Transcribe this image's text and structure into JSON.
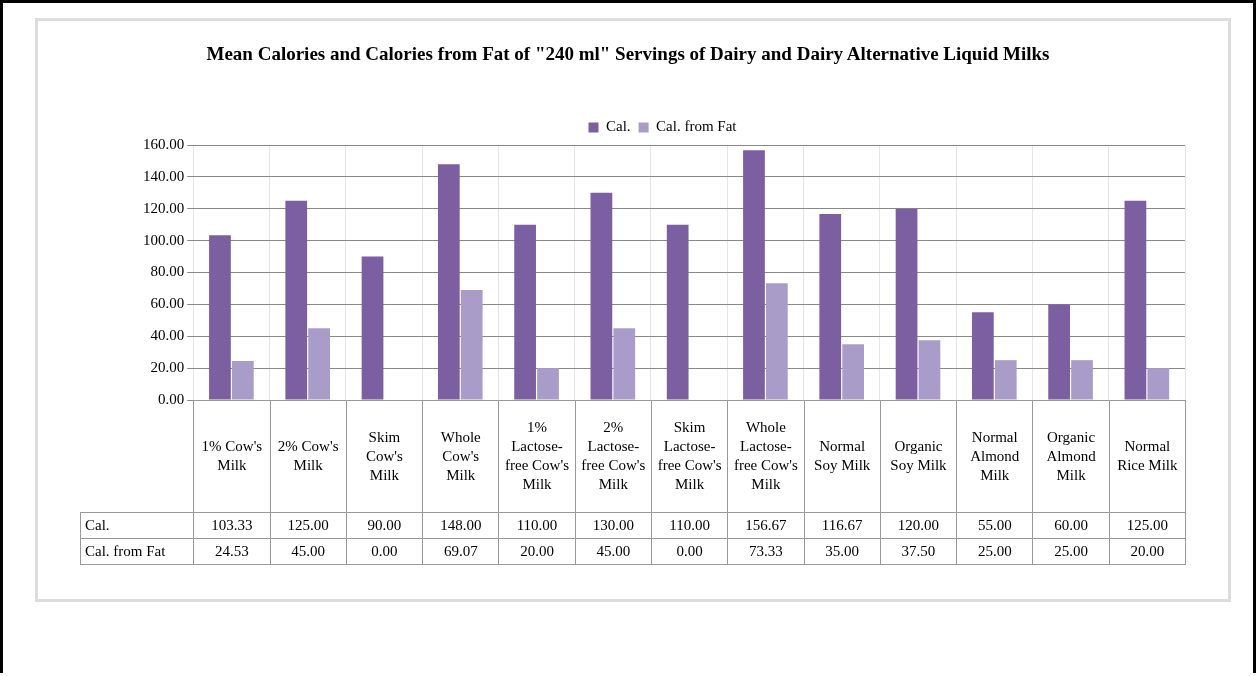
{
  "chart_data": {
    "type": "bar",
    "title": "Mean Calories and Calories from Fat of \"240 ml\" Servings of Dairy and Dairy Alternative Liquid Milks",
    "categories": [
      "1% Cow's Milk",
      "2% Cow's Milk",
      "Skim Cow's Milk",
      "Whole Cow's Milk",
      "1% Lactose-free Cow's Milk",
      "2% Lactose-free Cow's Milk",
      "Skim Lactose-free Cow's Milk",
      "Whole Lactose-free Cow's Milk",
      "Normal Soy Milk",
      "Organic Soy Milk",
      "Normal Almond Milk",
      "Organic Almond Milk",
      "Normal Rice Milk"
    ],
    "series": [
      {
        "name": "Cal.",
        "color": "#7b5fa0",
        "values": [
          103.33,
          125,
          90,
          148,
          110,
          130,
          110,
          156.67,
          116.67,
          120,
          55,
          60,
          125
        ],
        "value_labels": [
          "103.33",
          "125.00",
          "90.00",
          "148.00",
          "110.00",
          "130.00",
          "110.00",
          "156.67",
          "116.67",
          "120.00",
          "55.00",
          "60.00",
          "125.00"
        ]
      },
      {
        "name": "Cal. from Fat",
        "color": "#aa9cc8",
        "values": [
          24.53,
          45,
          0,
          69.07,
          20,
          45,
          0,
          73.33,
          35,
          37.5,
          25,
          25,
          20
        ],
        "value_labels": [
          "24.53",
          "45.00",
          "0.00",
          "69.07",
          "20.00",
          "45.00",
          "0.00",
          "73.33",
          "35.00",
          "37.50",
          "25.00",
          "25.00",
          "20.00"
        ]
      }
    ],
    "ylim": [
      0,
      160
    ],
    "yticks": [
      {
        "value": 0,
        "label": "0.00"
      },
      {
        "value": 20,
        "label": "20.00"
      },
      {
        "value": 40,
        "label": "40.00"
      },
      {
        "value": 60,
        "label": "60.00"
      },
      {
        "value": 80,
        "label": "80.00"
      },
      {
        "value": 100,
        "label": "100.00"
      },
      {
        "value": 120,
        "label": "120.00"
      },
      {
        "value": 140,
        "label": "140.00"
      },
      {
        "value": 160,
        "label": "160.00"
      }
    ],
    "grid": true,
    "legend": "top"
  }
}
